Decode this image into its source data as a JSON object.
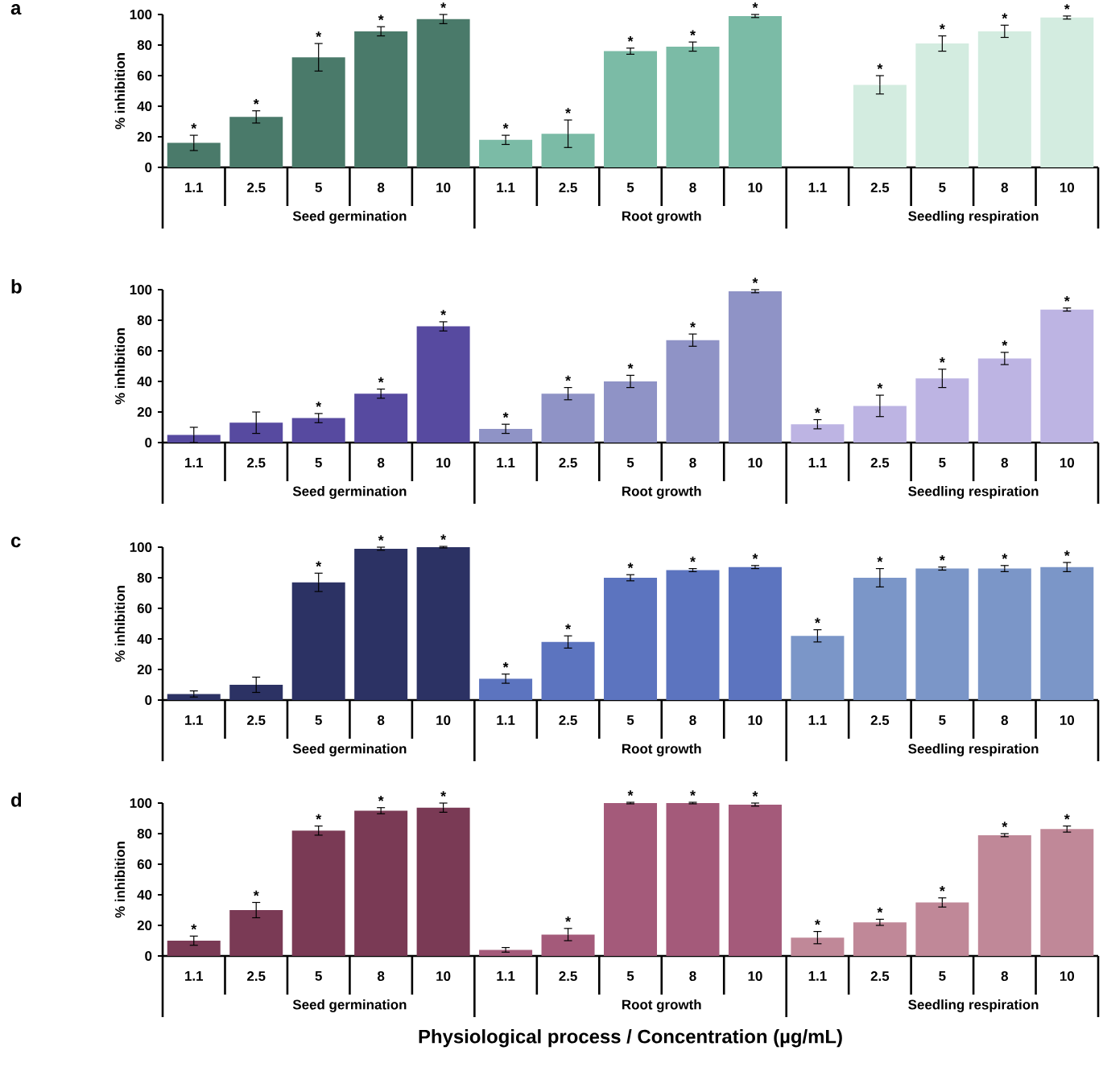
{
  "chart_data": [
    {
      "type": "bar",
      "title": "a",
      "ylabel": "% inhibition",
      "categories": [
        "1.1",
        "2.5",
        "5",
        "8",
        "10",
        "1.1",
        "2.5",
        "5",
        "8",
        "10",
        "1.1",
        "2.5",
        "5",
        "8",
        "10"
      ],
      "ylim": [
        0,
        100
      ],
      "yticks": [
        0,
        20,
        40,
        60,
        80,
        100
      ],
      "series": [
        {
          "name": "Seed germination",
          "color": "#4a7a6a",
          "values": [
            16,
            33,
            72,
            89,
            97,
            null,
            null,
            null,
            null,
            null,
            null,
            null,
            null,
            null,
            null
          ],
          "errors": [
            5,
            4,
            9,
            3,
            3,
            null,
            null,
            null,
            null,
            null,
            null,
            null,
            null,
            null,
            null
          ],
          "value_labels": [
            "*",
            "*",
            "*",
            "*",
            "*",
            null,
            null,
            null,
            null,
            null,
            null,
            null,
            null,
            null,
            null
          ]
        },
        {
          "name": "Root growth",
          "color": "#7bbba6",
          "values": [
            null,
            null,
            null,
            null,
            null,
            18,
            22,
            76,
            79,
            99,
            null,
            null,
            null,
            null,
            null
          ],
          "errors": [
            null,
            null,
            null,
            null,
            null,
            3,
            9,
            2,
            3,
            1,
            null,
            null,
            null,
            null,
            null
          ],
          "value_labels": [
            null,
            null,
            null,
            null,
            null,
            "*",
            "*",
            "*",
            "*",
            "*",
            null,
            null,
            null,
            null,
            null
          ]
        },
        {
          "name": "Seedling respiration",
          "color": "#d3ece0",
          "values": [
            null,
            null,
            null,
            null,
            null,
            null,
            null,
            null,
            null,
            null,
            0,
            54,
            81,
            89,
            98
          ],
          "errors": [
            null,
            null,
            null,
            null,
            null,
            null,
            null,
            null,
            null,
            null,
            null,
            6,
            5,
            4,
            1
          ],
          "value_labels": [
            null,
            null,
            null,
            null,
            null,
            null,
            null,
            null,
            null,
            null,
            null,
            "*",
            "*",
            "*",
            "*"
          ]
        }
      ]
    },
    {
      "type": "bar",
      "title": "b",
      "ylabel": "% inhibition",
      "categories": [
        "1.1",
        "2.5",
        "5",
        "8",
        "10",
        "1.1",
        "2.5",
        "5",
        "8",
        "10",
        "1.1",
        "2.5",
        "5",
        "8",
        "10"
      ],
      "ylim": [
        0,
        100
      ],
      "yticks": [
        0,
        20,
        40,
        60,
        80,
        100
      ],
      "series": [
        {
          "name": "Seed germination",
          "color": "#574aa0",
          "values": [
            5,
            13,
            16,
            32,
            76,
            null,
            null,
            null,
            null,
            null,
            null,
            null,
            null,
            null,
            null
          ],
          "errors": [
            5,
            7,
            3,
            3,
            3,
            null,
            null,
            null,
            null,
            null,
            null,
            null,
            null,
            null,
            null
          ],
          "value_labels": [
            null,
            null,
            "*",
            "*",
            "*",
            null,
            null,
            null,
            null,
            null,
            null,
            null,
            null,
            null,
            null
          ]
        },
        {
          "name": "Root growth",
          "color": "#8f93c6",
          "values": [
            null,
            null,
            null,
            null,
            null,
            9,
            32,
            40,
            67,
            99,
            null,
            null,
            null,
            null,
            null
          ],
          "errors": [
            null,
            null,
            null,
            null,
            null,
            3,
            4,
            4,
            4,
            1,
            null,
            null,
            null,
            null,
            null
          ],
          "value_labels": [
            null,
            null,
            null,
            null,
            null,
            "*",
            "*",
            "*",
            "*",
            "*",
            null,
            null,
            null,
            null,
            null
          ]
        },
        {
          "name": "Seedling respiration",
          "color": "#bdb4e3",
          "values": [
            null,
            null,
            null,
            null,
            null,
            null,
            null,
            null,
            null,
            null,
            12,
            24,
            42,
            55,
            87
          ],
          "errors": [
            null,
            null,
            null,
            null,
            null,
            null,
            null,
            null,
            null,
            null,
            3,
            7,
            6,
            4,
            1
          ],
          "value_labels": [
            null,
            null,
            null,
            null,
            null,
            null,
            null,
            null,
            null,
            null,
            "*",
            "*",
            "*",
            "*",
            "*"
          ]
        }
      ]
    },
    {
      "type": "bar",
      "title": "c",
      "ylabel": "% inhibition",
      "categories": [
        "1.1",
        "2.5",
        "5",
        "8",
        "10",
        "1.1",
        "2.5",
        "5",
        "8",
        "10",
        "1.1",
        "2.5",
        "5",
        "8",
        "10"
      ],
      "ylim": [
        0,
        100
      ],
      "yticks": [
        0,
        20,
        40,
        60,
        80,
        100
      ],
      "series": [
        {
          "name": "Seed germination",
          "color": "#2c3264",
          "values": [
            4,
            10,
            77,
            99,
            100,
            null,
            null,
            null,
            null,
            null,
            null,
            null,
            null,
            null,
            null
          ],
          "errors": [
            2,
            5,
            6,
            1,
            0.5,
            null,
            null,
            null,
            null,
            null,
            null,
            null,
            null,
            null,
            null
          ],
          "value_labels": [
            null,
            null,
            "*",
            "*",
            "*",
            null,
            null,
            null,
            null,
            null,
            null,
            null,
            null,
            null,
            null
          ]
        },
        {
          "name": "Root growth",
          "color": "#5c74bf",
          "values": [
            null,
            null,
            null,
            null,
            null,
            14,
            38,
            80,
            85,
            87,
            null,
            null,
            null,
            null,
            null
          ],
          "errors": [
            null,
            null,
            null,
            null,
            null,
            3,
            4,
            2,
            1,
            1,
            null,
            null,
            null,
            null,
            null
          ],
          "value_labels": [
            null,
            null,
            null,
            null,
            null,
            "*",
            "*",
            "*",
            "*",
            "*",
            null,
            null,
            null,
            null,
            null
          ]
        },
        {
          "name": "Seedling respiration",
          "color": "#7b96c8",
          "values": [
            null,
            null,
            null,
            null,
            null,
            null,
            null,
            null,
            null,
            null,
            42,
            80,
            86,
            86,
            87
          ],
          "errors": [
            null,
            null,
            null,
            null,
            null,
            null,
            null,
            null,
            null,
            null,
            4,
            6,
            1,
            2,
            3
          ],
          "value_labels": [
            null,
            null,
            null,
            null,
            null,
            null,
            null,
            null,
            null,
            null,
            "*",
            "*",
            "*",
            "*",
            "*"
          ]
        }
      ]
    },
    {
      "type": "bar",
      "title": "d",
      "ylabel": "% inhibition",
      "xlabel": "Physiological process / Concentration (µg/mL)",
      "categories": [
        "1.1",
        "2.5",
        "5",
        "8",
        "10",
        "1.1",
        "2.5",
        "5",
        "8",
        "10",
        "1.1",
        "2.5",
        "5",
        "8",
        "10"
      ],
      "ylim": [
        0,
        100
      ],
      "yticks": [
        0,
        20,
        40,
        60,
        80,
        100
      ],
      "series": [
        {
          "name": "Seed germination",
          "color": "#7a3a55",
          "values": [
            10,
            30,
            82,
            95,
            97,
            null,
            null,
            null,
            null,
            null,
            null,
            null,
            null,
            null,
            null
          ],
          "errors": [
            3,
            5,
            3,
            2,
            3,
            null,
            null,
            null,
            null,
            null,
            null,
            null,
            null,
            null,
            null
          ],
          "value_labels": [
            "*",
            "*",
            "*",
            "*",
            "*",
            null,
            null,
            null,
            null,
            null,
            null,
            null,
            null,
            null,
            null
          ]
        },
        {
          "name": "Root growth",
          "color": "#a45a7a",
          "values": [
            null,
            null,
            null,
            null,
            null,
            4,
            14,
            100,
            100,
            99,
            null,
            null,
            null,
            null,
            null
          ],
          "errors": [
            null,
            null,
            null,
            null,
            null,
            1.5,
            4,
            0.5,
            0.5,
            1,
            null,
            null,
            null,
            null,
            null
          ],
          "value_labels": [
            null,
            null,
            null,
            null,
            null,
            null,
            "*",
            "*",
            "*",
            "*",
            null,
            null,
            null,
            null,
            null
          ]
        },
        {
          "name": "Seedling respiration",
          "color": "#c08898",
          "values": [
            null,
            null,
            null,
            null,
            null,
            null,
            null,
            null,
            null,
            null,
            12,
            22,
            35,
            79,
            83
          ],
          "errors": [
            null,
            null,
            null,
            null,
            null,
            null,
            null,
            null,
            null,
            null,
            4,
            2,
            3,
            1,
            2
          ],
          "value_labels": [
            null,
            null,
            null,
            null,
            null,
            null,
            null,
            null,
            null,
            null,
            "*",
            "*",
            "*",
            "*",
            "*"
          ]
        }
      ]
    }
  ]
}
